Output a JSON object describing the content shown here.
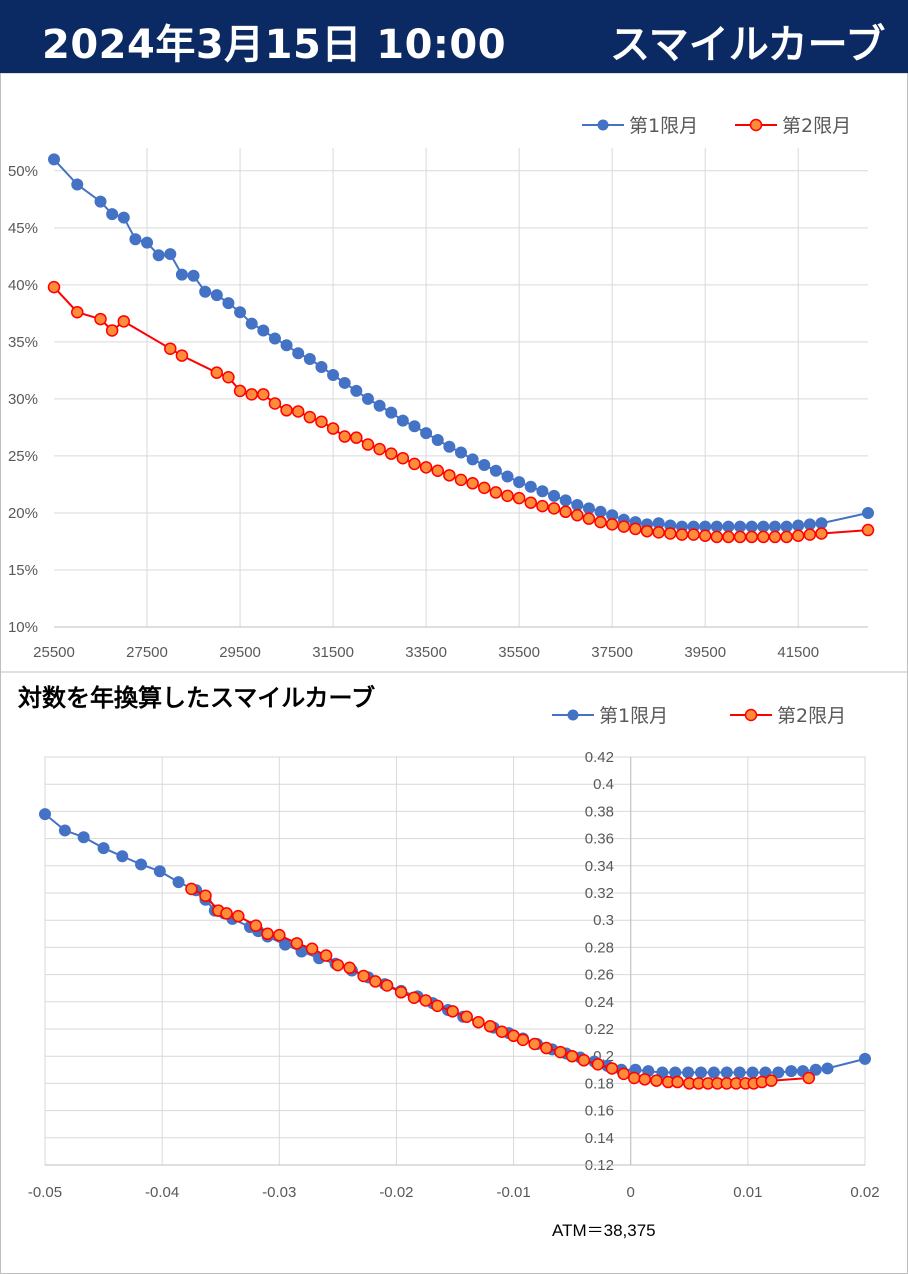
{
  "header": {
    "date": "2024年3月15日 10:00",
    "title": "スマイルカーブ"
  },
  "colors": {
    "banner": "#0b2a63",
    "series1": "#4472c4",
    "series2": "#ff0000",
    "series2_fill": "#ff8c3a",
    "grid": "#d9d9d9"
  },
  "footer": {
    "atm": "ATM＝38,375"
  },
  "chart_data": [
    {
      "type": "line",
      "title": "",
      "xlabel": "",
      "ylabel": "",
      "xlim": [
        25500,
        43000
      ],
      "ylim": [
        10,
        52
      ],
      "x_ticks": [
        "25500",
        "27500",
        "29500",
        "31500",
        "33500",
        "35500",
        "37500",
        "39500",
        "41500"
      ],
      "y_ticks": [
        "10%",
        "15%",
        "20%",
        "25%",
        "30%",
        "35%",
        "40%",
        "45%",
        "50%"
      ],
      "legend": "top-right",
      "grid": true,
      "series": [
        {
          "name": "第1限月",
          "points": [
            [
              25500,
              51.0
            ],
            [
              26000,
              48.8
            ],
            [
              26500,
              47.3
            ],
            [
              26750,
              46.2
            ],
            [
              27000,
              45.9
            ],
            [
              27250,
              44.0
            ],
            [
              27500,
              43.7
            ],
            [
              27750,
              42.6
            ],
            [
              28000,
              42.7
            ],
            [
              28250,
              40.9
            ],
            [
              28500,
              40.8
            ],
            [
              28750,
              39.4
            ],
            [
              29000,
              39.1
            ],
            [
              29250,
              38.4
            ],
            [
              29500,
              37.6
            ],
            [
              29750,
              36.6
            ],
            [
              30000,
              36.0
            ],
            [
              30250,
              35.3
            ],
            [
              30500,
              34.7
            ],
            [
              30750,
              34.0
            ],
            [
              31000,
              33.5
            ],
            [
              31250,
              32.8
            ],
            [
              31500,
              32.1
            ],
            [
              31750,
              31.4
            ],
            [
              32000,
              30.7
            ],
            [
              32250,
              30.0
            ],
            [
              32500,
              29.4
            ],
            [
              32750,
              28.8
            ],
            [
              33000,
              28.1
            ],
            [
              33250,
              27.6
            ],
            [
              33500,
              27.0
            ],
            [
              33750,
              26.4
            ],
            [
              34000,
              25.8
            ],
            [
              34250,
              25.3
            ],
            [
              34500,
              24.7
            ],
            [
              34750,
              24.2
            ],
            [
              35000,
              23.7
            ],
            [
              35250,
              23.2
            ],
            [
              35500,
              22.7
            ],
            [
              35750,
              22.3
            ],
            [
              36000,
              21.9
            ],
            [
              36250,
              21.5
            ],
            [
              36500,
              21.1
            ],
            [
              36750,
              20.7
            ],
            [
              37000,
              20.4
            ],
            [
              37250,
              20.1
            ],
            [
              37500,
              19.8
            ],
            [
              37750,
              19.4
            ],
            [
              38000,
              19.2
            ],
            [
              38250,
              19.0
            ],
            [
              38500,
              19.1
            ],
            [
              38750,
              18.9
            ],
            [
              39000,
              18.8
            ],
            [
              39250,
              18.8
            ],
            [
              39500,
              18.8
            ],
            [
              39750,
              18.8
            ],
            [
              40000,
              18.8
            ],
            [
              40250,
              18.8
            ],
            [
              40500,
              18.8
            ],
            [
              40750,
              18.8
            ],
            [
              41000,
              18.8
            ],
            [
              41250,
              18.8
            ],
            [
              41500,
              18.9
            ],
            [
              41750,
              19.0
            ],
            [
              42000,
              19.1
            ],
            [
              43000,
              20.0
            ]
          ]
        },
        {
          "name": "第2限月",
          "points": [
            [
              25500,
              39.8
            ],
            [
              26000,
              37.6
            ],
            [
              26500,
              37.0
            ],
            [
              26750,
              36.0
            ],
            [
              27000,
              36.8
            ],
            [
              28000,
              34.4
            ],
            [
              28250,
              33.8
            ],
            [
              29000,
              32.3
            ],
            [
              29250,
              31.9
            ],
            [
              29500,
              30.7
            ],
            [
              29750,
              30.4
            ],
            [
              30000,
              30.4
            ],
            [
              30250,
              29.6
            ],
            [
              30500,
              29.0
            ],
            [
              30750,
              28.9
            ],
            [
              31000,
              28.4
            ],
            [
              31250,
              28.0
            ],
            [
              31500,
              27.4
            ],
            [
              31750,
              26.7
            ],
            [
              32000,
              26.6
            ],
            [
              32250,
              26.0
            ],
            [
              32500,
              25.6
            ],
            [
              32750,
              25.2
            ],
            [
              33000,
              24.8
            ],
            [
              33250,
              24.3
            ],
            [
              33500,
              24.0
            ],
            [
              33750,
              23.7
            ],
            [
              34000,
              23.3
            ],
            [
              34250,
              22.9
            ],
            [
              34500,
              22.6
            ],
            [
              34750,
              22.2
            ],
            [
              35000,
              21.8
            ],
            [
              35250,
              21.5
            ],
            [
              35500,
              21.3
            ],
            [
              35750,
              20.9
            ],
            [
              36000,
              20.6
            ],
            [
              36250,
              20.4
            ],
            [
              36500,
              20.1
            ],
            [
              36750,
              19.8
            ],
            [
              37000,
              19.5
            ],
            [
              37250,
              19.2
            ],
            [
              37500,
              19.0
            ],
            [
              37750,
              18.8
            ],
            [
              38000,
              18.6
            ],
            [
              38250,
              18.4
            ],
            [
              38500,
              18.3
            ],
            [
              38750,
              18.2
            ],
            [
              39000,
              18.1
            ],
            [
              39250,
              18.1
            ],
            [
              39500,
              18.0
            ],
            [
              39750,
              17.9
            ],
            [
              40000,
              17.9
            ],
            [
              40250,
              17.9
            ],
            [
              40500,
              17.9
            ],
            [
              40750,
              17.9
            ],
            [
              41000,
              17.9
            ],
            [
              41250,
              17.9
            ],
            [
              41500,
              18.0
            ],
            [
              41750,
              18.1
            ],
            [
              42000,
              18.2
            ],
            [
              43000,
              18.5
            ]
          ]
        }
      ]
    },
    {
      "type": "line",
      "title": "対数を年換算したスマイルカーブ",
      "xlabel": "",
      "ylabel": "",
      "xlim": [
        -0.05,
        0.02
      ],
      "ylim": [
        0.12,
        0.42
      ],
      "x_ticks": [
        "-0.05",
        "-0.04",
        "-0.03",
        "-0.02",
        "-0.01",
        "0",
        "0.01",
        "0.02"
      ],
      "y_ticks": [
        "0.12",
        "0.14",
        "0.16",
        "0.18",
        "0.2",
        "0.22",
        "0.24",
        "0.26",
        "0.28",
        "0.3",
        "0.32",
        "0.34",
        "0.36",
        "0.38",
        "0.4",
        "0.42"
      ],
      "legend": "top-right",
      "grid": true,
      "series": [
        {
          "name": "第1限月",
          "points": [
            [
              -0.05,
              0.378
            ],
            [
              -0.0483,
              0.366
            ],
            [
              -0.0467,
              0.361
            ],
            [
              -0.045,
              0.353
            ],
            [
              -0.0434,
              0.347
            ],
            [
              -0.0418,
              0.341
            ],
            [
              -0.0402,
              0.336
            ],
            [
              -0.0386,
              0.328
            ],
            [
              -0.0371,
              0.322
            ],
            [
              -0.0363,
              0.315
            ],
            [
              -0.0355,
              0.307
            ],
            [
              -0.0347,
              0.305
            ],
            [
              -0.034,
              0.301
            ],
            [
              -0.0325,
              0.295
            ],
            [
              -0.0318,
              0.292
            ],
            [
              -0.031,
              0.288
            ],
            [
              -0.0295,
              0.282
            ],
            [
              -0.0281,
              0.277
            ],
            [
              -0.0266,
              0.272
            ],
            [
              -0.0252,
              0.268
            ],
            [
              -0.0238,
              0.263
            ],
            [
              -0.0224,
              0.258
            ],
            [
              -0.021,
              0.253
            ],
            [
              -0.0196,
              0.248
            ],
            [
              -0.0182,
              0.244
            ],
            [
              -0.0169,
              0.239
            ],
            [
              -0.0156,
              0.234
            ],
            [
              -0.0143,
              0.229
            ],
            [
              -0.013,
              0.225
            ],
            [
              -0.0117,
              0.221
            ],
            [
              -0.0104,
              0.217
            ],
            [
              -0.0092,
              0.213
            ],
            [
              -0.008,
              0.209
            ],
            [
              -0.0067,
              0.205
            ],
            [
              -0.0055,
              0.202
            ],
            [
              -0.0043,
              0.199
            ],
            [
              -0.0031,
              0.196
            ],
            [
              -0.002,
              0.193
            ],
            [
              -0.0008,
              0.19
            ],
            [
              0.0004,
              0.19
            ],
            [
              0.0015,
              0.189
            ],
            [
              0.0027,
              0.188
            ],
            [
              0.0038,
              0.188
            ],
            [
              0.0049,
              0.188
            ],
            [
              0.006,
              0.188
            ],
            [
              0.0071,
              0.188
            ],
            [
              0.0082,
              0.188
            ],
            [
              0.0093,
              0.188
            ],
            [
              0.0104,
              0.188
            ],
            [
              0.0115,
              0.188
            ],
            [
              0.0126,
              0.188
            ],
            [
              0.0137,
              0.189
            ],
            [
              0.0147,
              0.189
            ],
            [
              0.0158,
              0.19
            ],
            [
              0.0168,
              0.191
            ],
            [
              0.02,
              0.198
            ]
          ]
        },
        {
          "name": "第2限月",
          "points": [
            [
              -0.0375,
              0.323
            ],
            [
              -0.0363,
              0.318
            ],
            [
              -0.0352,
              0.307
            ],
            [
              -0.0345,
              0.305
            ],
            [
              -0.0335,
              0.303
            ],
            [
              -0.032,
              0.296
            ],
            [
              -0.031,
              0.29
            ],
            [
              -0.03,
              0.289
            ],
            [
              -0.0285,
              0.283
            ],
            [
              -0.0272,
              0.279
            ],
            [
              -0.026,
              0.274
            ],
            [
              -0.025,
              0.267
            ],
            [
              -0.024,
              0.265
            ],
            [
              -0.0228,
              0.259
            ],
            [
              -0.0218,
              0.255
            ],
            [
              -0.0208,
              0.252
            ],
            [
              -0.0196,
              0.247
            ],
            [
              -0.0185,
              0.243
            ],
            [
              -0.0175,
              0.241
            ],
            [
              -0.0165,
              0.237
            ],
            [
              -0.0152,
              0.233
            ],
            [
              -0.014,
              0.229
            ],
            [
              -0.013,
              0.225
            ],
            [
              -0.012,
              0.222
            ],
            [
              -0.011,
              0.218
            ],
            [
              -0.01,
              0.215
            ],
            [
              -0.0092,
              0.212
            ],
            [
              -0.0082,
              0.209
            ],
            [
              -0.0072,
              0.206
            ],
            [
              -0.006,
              0.203
            ],
            [
              -0.005,
              0.2
            ],
            [
              -0.004,
              0.197
            ],
            [
              -0.0028,
              0.194
            ],
            [
              -0.0016,
              0.191
            ],
            [
              -0.0006,
              0.187
            ],
            [
              0.0003,
              0.184
            ],
            [
              0.0012,
              0.183
            ],
            [
              0.0022,
              0.182
            ],
            [
              0.0032,
              0.181
            ],
            [
              0.004,
              0.181
            ],
            [
              0.005,
              0.18
            ],
            [
              0.0058,
              0.18
            ],
            [
              0.0066,
              0.18
            ],
            [
              0.0074,
              0.18
            ],
            [
              0.0082,
              0.18
            ],
            [
              0.009,
              0.18
            ],
            [
              0.0098,
              0.18
            ],
            [
              0.0105,
              0.18
            ],
            [
              0.0112,
              0.181
            ],
            [
              0.012,
              0.182
            ],
            [
              0.0152,
              0.184
            ]
          ]
        }
      ]
    }
  ]
}
